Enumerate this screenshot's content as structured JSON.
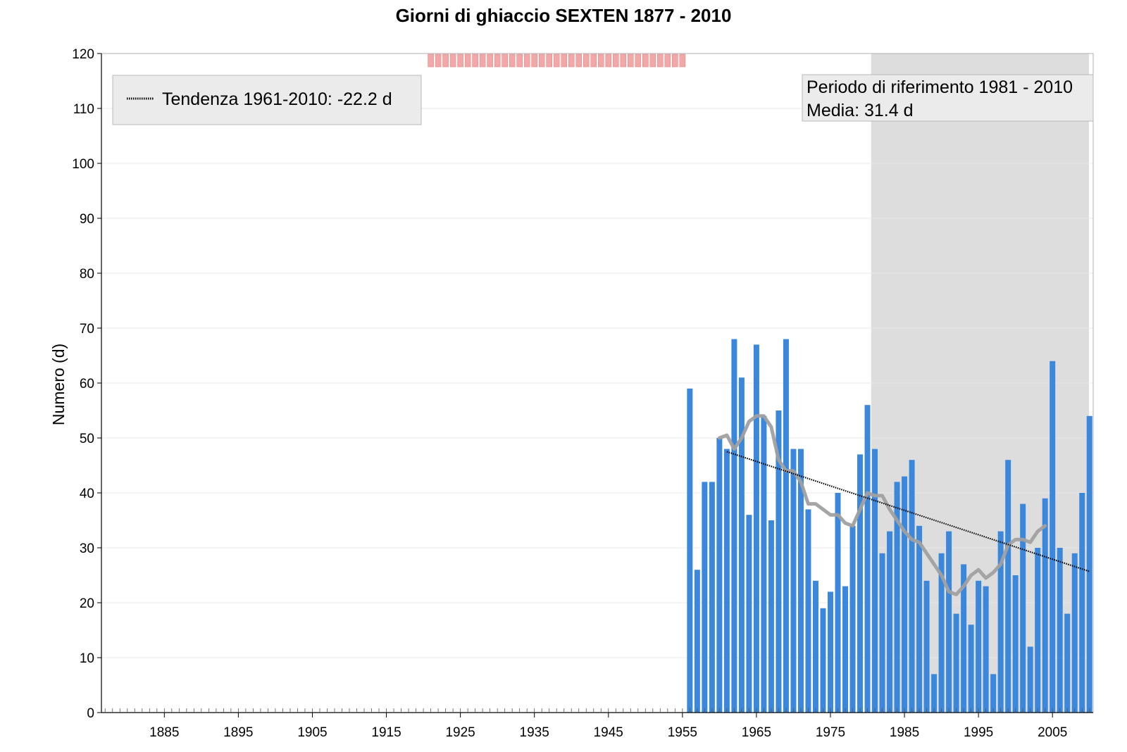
{
  "chart_data": {
    "type": "bar",
    "title": "Giorni di ghiaccio SEXTEN 1877 - 2010",
    "xlabel": "",
    "ylabel": "Numero (d)",
    "xlim": [
      1876.5,
      2010.5
    ],
    "ylim": [
      0,
      120
    ],
    "yticks": [
      0,
      10,
      20,
      30,
      40,
      50,
      60,
      70,
      80,
      90,
      100,
      110,
      120
    ],
    "xticks": [
      1885,
      1895,
      1905,
      1915,
      1925,
      1935,
      1945,
      1955,
      1965,
      1975,
      1985,
      1995,
      2005
    ],
    "grid": true,
    "colors": {
      "bars": "#3a87dc",
      "reference_shade": "#dddddd",
      "missing_marker": "#f4a7a7",
      "smooth_line": "#a0a0a0",
      "trend_line": "#000000"
    },
    "years": [
      1956,
      1957,
      1958,
      1959,
      1960,
      1961,
      1962,
      1963,
      1964,
      1965,
      1966,
      1967,
      1968,
      1969,
      1970,
      1971,
      1972,
      1973,
      1974,
      1975,
      1976,
      1977,
      1978,
      1979,
      1980,
      1981,
      1982,
      1983,
      1984,
      1985,
      1986,
      1987,
      1988,
      1989,
      1990,
      1991,
      1992,
      1993,
      1994,
      1995,
      1996,
      1997,
      1998,
      1999,
      2000,
      2001,
      2002,
      2003,
      2004,
      2005,
      2006,
      2007,
      2008,
      2009,
      2010
    ],
    "values": [
      59,
      26,
      42,
      42,
      50,
      48,
      68,
      61,
      36,
      67,
      54,
      35,
      55,
      68,
      48,
      48,
      37,
      24,
      19,
      22,
      40,
      23,
      34,
      47,
      56,
      48,
      29,
      33,
      42,
      43,
      46,
      34,
      24,
      7,
      29,
      33,
      18,
      27,
      16,
      24,
      23,
      7,
      33,
      46,
      25,
      38,
      12,
      30,
      39,
      64,
      30,
      18,
      29,
      40,
      54
    ],
    "missing_years": [
      1921,
      1922,
      1923,
      1924,
      1925,
      1926,
      1927,
      1928,
      1929,
      1930,
      1931,
      1932,
      1933,
      1934,
      1935,
      1936,
      1937,
      1938,
      1939,
      1940,
      1941,
      1942,
      1943,
      1944,
      1945,
      1946,
      1947,
      1948,
      1949,
      1950,
      1951,
      1952,
      1953,
      1954,
      1955
    ],
    "smooth": {
      "name": "",
      "years": [
        1960,
        1961,
        1962,
        1963,
        1964,
        1965,
        1966,
        1967,
        1968,
        1969,
        1970,
        1971,
        1972,
        1973,
        1974,
        1975,
        1976,
        1977,
        1978,
        1979,
        1980,
        1981,
        1982,
        1983,
        1984,
        1985,
        1986,
        1987,
        1988,
        1989,
        1990,
        1991,
        1992,
        1993,
        1994,
        1995,
        1996,
        1997,
        1998,
        1999,
        2000,
        2001,
        2002,
        2003,
        2004
      ],
      "values": [
        50,
        50.5,
        48,
        50,
        53,
        54,
        54,
        52,
        46,
        44,
        44,
        42,
        38,
        38,
        37,
        36,
        36,
        34.5,
        34,
        37,
        40,
        39.5,
        39.5,
        37,
        35,
        33,
        31.5,
        31,
        29,
        27,
        25,
        22,
        21.5,
        23,
        25,
        26,
        24.5,
        25.5,
        27,
        30.5,
        31.5,
        31.5,
        31,
        33,
        34
      ]
    },
    "trend": {
      "name": "Tendenza 1961-2010: -22.2 d",
      "x": [
        1961,
        2010
      ],
      "y": [
        47.5,
        25.7
      ]
    },
    "reference": {
      "x": [
        1981,
        2010
      ],
      "label_line1": "Periodo di riferimento 1981 - 2010",
      "label_line2": "Media: 31.4 d"
    },
    "legend": {
      "position": "top-left",
      "entry": "Tendenza 1961-2010: -22.2 d"
    }
  }
}
